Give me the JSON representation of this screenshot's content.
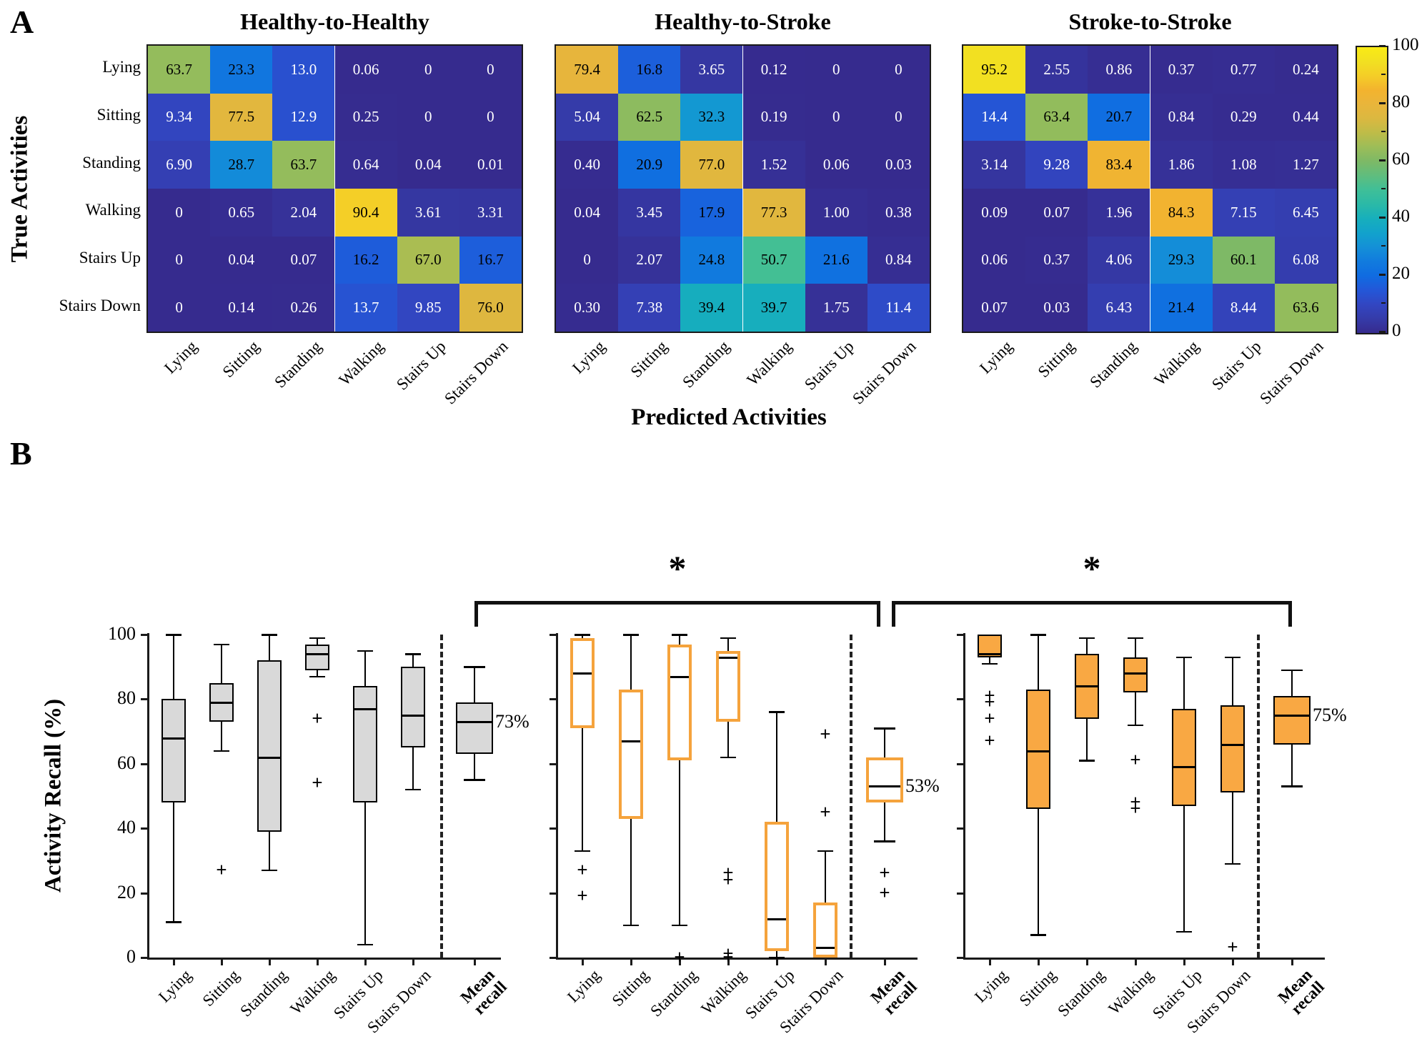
{
  "figure": {
    "panel_a_label": "A",
    "panel_b_label": "B",
    "true_activities_label": "True Activities",
    "predicted_activities_label": "Predicted Activities",
    "activity_recall_label": "Activity Recall (%)",
    "significance_marker": "*"
  },
  "activities": [
    "Lying",
    "Sitting",
    "Standing",
    "Walking",
    "Stairs Up",
    "Stairs Down"
  ],
  "mean_recall_label": [
    "Mean",
    "recall"
  ],
  "colorbar": {
    "ticks": [
      100,
      80,
      60,
      40,
      20,
      0
    ],
    "minor_ticks": [
      90,
      70,
      50,
      30,
      10
    ],
    "range": [
      0,
      100
    ]
  },
  "colors": {
    "heatmap_low": "#362B8E",
    "heatmap_high": "#F9EB15",
    "axis": "#1a1a1a",
    "group1_fill": "#D9D9D9",
    "group2_edge": "#F5A33C",
    "group3_fill": "#F9A843"
  },
  "chart_data": [
    {
      "type": "heatmap",
      "title": "Healthy-to-Healthy",
      "xlabel": "Predicted Activities",
      "ylabel": "True Activities",
      "x_categories": [
        "Lying",
        "Sitting",
        "Standing",
        "Walking",
        "Stairs Up",
        "Stairs Down"
      ],
      "y_categories": [
        "Lying",
        "Sitting",
        "Standing",
        "Walking",
        "Stairs Up",
        "Stairs Down"
      ],
      "value_range": [
        0,
        100
      ],
      "rows": [
        [
          "63.7",
          "23.3",
          "13.0",
          "0.06",
          "0",
          "0"
        ],
        [
          "9.34",
          "77.5",
          "12.9",
          "0.25",
          "0",
          "0"
        ],
        [
          "6.90",
          "28.7",
          "63.7",
          "0.64",
          "0.04",
          "0.01"
        ],
        [
          "0",
          "0.65",
          "2.04",
          "90.4",
          "3.61",
          "3.31"
        ],
        [
          "0",
          "0.04",
          "0.07",
          "16.2",
          "67.0",
          "16.7"
        ],
        [
          "0",
          "0.14",
          "0.26",
          "13.7",
          "9.85",
          "76.0"
        ]
      ]
    },
    {
      "type": "heatmap",
      "title": "Healthy-to-Stroke",
      "xlabel": "Predicted Activities",
      "ylabel": "True Activities",
      "x_categories": [
        "Lying",
        "Sitting",
        "Standing",
        "Walking",
        "Stairs Up",
        "Stairs Down"
      ],
      "y_categories": [
        "Lying",
        "Sitting",
        "Standing",
        "Walking",
        "Stairs Up",
        "Stairs Down"
      ],
      "value_range": [
        0,
        100
      ],
      "rows": [
        [
          "79.4",
          "16.8",
          "3.65",
          "0.12",
          "0",
          "0"
        ],
        [
          "5.04",
          "62.5",
          "32.3",
          "0.19",
          "0",
          "0"
        ],
        [
          "0.40",
          "20.9",
          "77.0",
          "1.52",
          "0.06",
          "0.03"
        ],
        [
          "0.04",
          "3.45",
          "17.9",
          "77.3",
          "1.00",
          "0.38"
        ],
        [
          "0",
          "2.07",
          "24.8",
          "50.7",
          "21.6",
          "0.84"
        ],
        [
          "0.30",
          "7.38",
          "39.4",
          "39.7",
          "1.75",
          "11.4"
        ]
      ]
    },
    {
      "type": "heatmap",
      "title": "Stroke-to-Stroke",
      "xlabel": "Predicted Activities",
      "ylabel": "True Activities",
      "x_categories": [
        "Lying",
        "Sitting",
        "Standing",
        "Walking",
        "Stairs Up",
        "Stairs Down"
      ],
      "y_categories": [
        "Lying",
        "Sitting",
        "Standing",
        "Walking",
        "Stairs Up",
        "Stairs Down"
      ],
      "value_range": [
        0,
        100
      ],
      "rows": [
        [
          "95.2",
          "2.55",
          "0.86",
          "0.37",
          "0.77",
          "0.24"
        ],
        [
          "14.4",
          "63.4",
          "20.7",
          "0.84",
          "0.29",
          "0.44"
        ],
        [
          "3.14",
          "9.28",
          "83.4",
          "1.86",
          "1.08",
          "1.27"
        ],
        [
          "0.09",
          "0.07",
          "1.96",
          "84.3",
          "7.15",
          "6.45"
        ],
        [
          "0.06",
          "0.37",
          "4.06",
          "29.3",
          "60.1",
          "6.08"
        ],
        [
          "0.07",
          "0.03",
          "6.43",
          "21.4",
          "8.44",
          "63.6"
        ]
      ]
    },
    {
      "type": "boxplot",
      "ylabel": "Activity Recall (%)",
      "ylim": [
        0,
        100
      ],
      "yticks": [
        0,
        20,
        40,
        60,
        80,
        100
      ],
      "categories": [
        "Lying",
        "Sitting",
        "Standing",
        "Walking",
        "Stairs Up",
        "Stairs Down",
        "Mean recall"
      ],
      "significance_brackets": [
        {
          "from_group": 0,
          "to_group": 1,
          "label": "*"
        },
        {
          "from_group": 1,
          "to_group": 2,
          "label": "*"
        }
      ],
      "groups": [
        {
          "name": "Healthy-to-Healthy",
          "mean_annotation": "73%",
          "box_style": {
            "fill": "#D9D9D9",
            "edge": "#000000",
            "edge_width": 2
          },
          "boxes": [
            {
              "category": "Lying",
              "whisker_low": 11,
              "q1": 48,
              "median": 68,
              "q3": 80,
              "whisker_high": 100,
              "outliers": []
            },
            {
              "category": "Sitting",
              "whisker_low": 64,
              "q1": 73,
              "median": 79,
              "q3": 85,
              "whisker_high": 97,
              "outliers": [
                27
              ]
            },
            {
              "category": "Standing",
              "whisker_low": 27,
              "q1": 39,
              "median": 62,
              "q3": 92,
              "whisker_high": 100,
              "outliers": []
            },
            {
              "category": "Walking",
              "whisker_low": 87,
              "q1": 89,
              "median": 94,
              "q3": 97,
              "whisker_high": 99,
              "outliers": [
                74,
                54
              ]
            },
            {
              "category": "Stairs Up",
              "whisker_low": 4,
              "q1": 48,
              "median": 77,
              "q3": 84,
              "whisker_high": 95,
              "outliers": []
            },
            {
              "category": "Stairs Down",
              "whisker_low": 52,
              "q1": 65,
              "median": 75,
              "q3": 90,
              "whisker_high": 94,
              "outliers": []
            },
            {
              "category": "Mean recall",
              "whisker_low": 55,
              "q1": 63,
              "median": 73,
              "q3": 79,
              "whisker_high": 90,
              "outliers": []
            }
          ]
        },
        {
          "name": "Healthy-to-Stroke",
          "mean_annotation": "53%",
          "box_style": {
            "fill": "#FFFFFF",
            "edge": "#F5A33C",
            "edge_width": 4
          },
          "boxes": [
            {
              "category": "Lying",
              "whisker_low": 33,
              "q1": 71,
              "median": 88,
              "q3": 99,
              "whisker_high": 100,
              "outliers": [
                27,
                19
              ]
            },
            {
              "category": "Sitting",
              "whisker_low": 10,
              "q1": 43,
              "median": 67,
              "q3": 83,
              "whisker_high": 100,
              "outliers": []
            },
            {
              "category": "Standing",
              "whisker_low": 10,
              "q1": 61,
              "median": 87,
              "q3": 97,
              "whisker_high": 100,
              "outliers": [
                0
              ]
            },
            {
              "category": "Walking",
              "whisker_low": 62,
              "q1": 73,
              "median": 93,
              "q3": 95,
              "whisker_high": 99,
              "outliers": [
                26,
                24,
                1,
                0
              ]
            },
            {
              "category": "Stairs Up",
              "whisker_low": 0,
              "q1": 2,
              "median": 12,
              "q3": 42,
              "whisker_high": 76,
              "outliers": []
            },
            {
              "category": "Stairs Down",
              "whisker_low": 0,
              "q1": 0,
              "median": 3,
              "q3": 17,
              "whisker_high": 33,
              "outliers": [
                69,
                45
              ]
            },
            {
              "category": "Mean recall",
              "whisker_low": 36,
              "q1": 48,
              "median": 53,
              "q3": 62,
              "whisker_high": 71,
              "outliers": [
                26,
                20
              ]
            }
          ]
        },
        {
          "name": "Stroke-to-Stroke",
          "mean_annotation": "75%",
          "box_style": {
            "fill": "#F9A843",
            "edge": "#000000",
            "edge_width": 2
          },
          "boxes": [
            {
              "category": "Lying",
              "whisker_low": 91,
              "q1": 93,
              "median": 94,
              "q3": 100,
              "whisker_high": 100,
              "outliers": [
                81,
                79,
                74,
                67
              ]
            },
            {
              "category": "Sitting",
              "whisker_low": 7,
              "q1": 46,
              "median": 64,
              "q3": 83,
              "whisker_high": 100,
              "outliers": []
            },
            {
              "category": "Standing",
              "whisker_low": 61,
              "q1": 74,
              "median": 84,
              "q3": 94,
              "whisker_high": 99,
              "outliers": []
            },
            {
              "category": "Walking",
              "whisker_low": 72,
              "q1": 82,
              "median": 88,
              "q3": 93,
              "whisker_high": 99,
              "outliers": [
                61,
                48,
                46
              ]
            },
            {
              "category": "Stairs Up",
              "whisker_low": 8,
              "q1": 47,
              "median": 59,
              "q3": 77,
              "whisker_high": 93,
              "outliers": []
            },
            {
              "category": "Stairs Down",
              "whisker_low": 29,
              "q1": 51,
              "median": 66,
              "q3": 78,
              "whisker_high": 93,
              "outliers": [
                3
              ]
            },
            {
              "category": "Mean recall",
              "whisker_low": 53,
              "q1": 66,
              "median": 75,
              "q3": 81,
              "whisker_high": 89,
              "outliers": []
            }
          ]
        }
      ]
    }
  ]
}
